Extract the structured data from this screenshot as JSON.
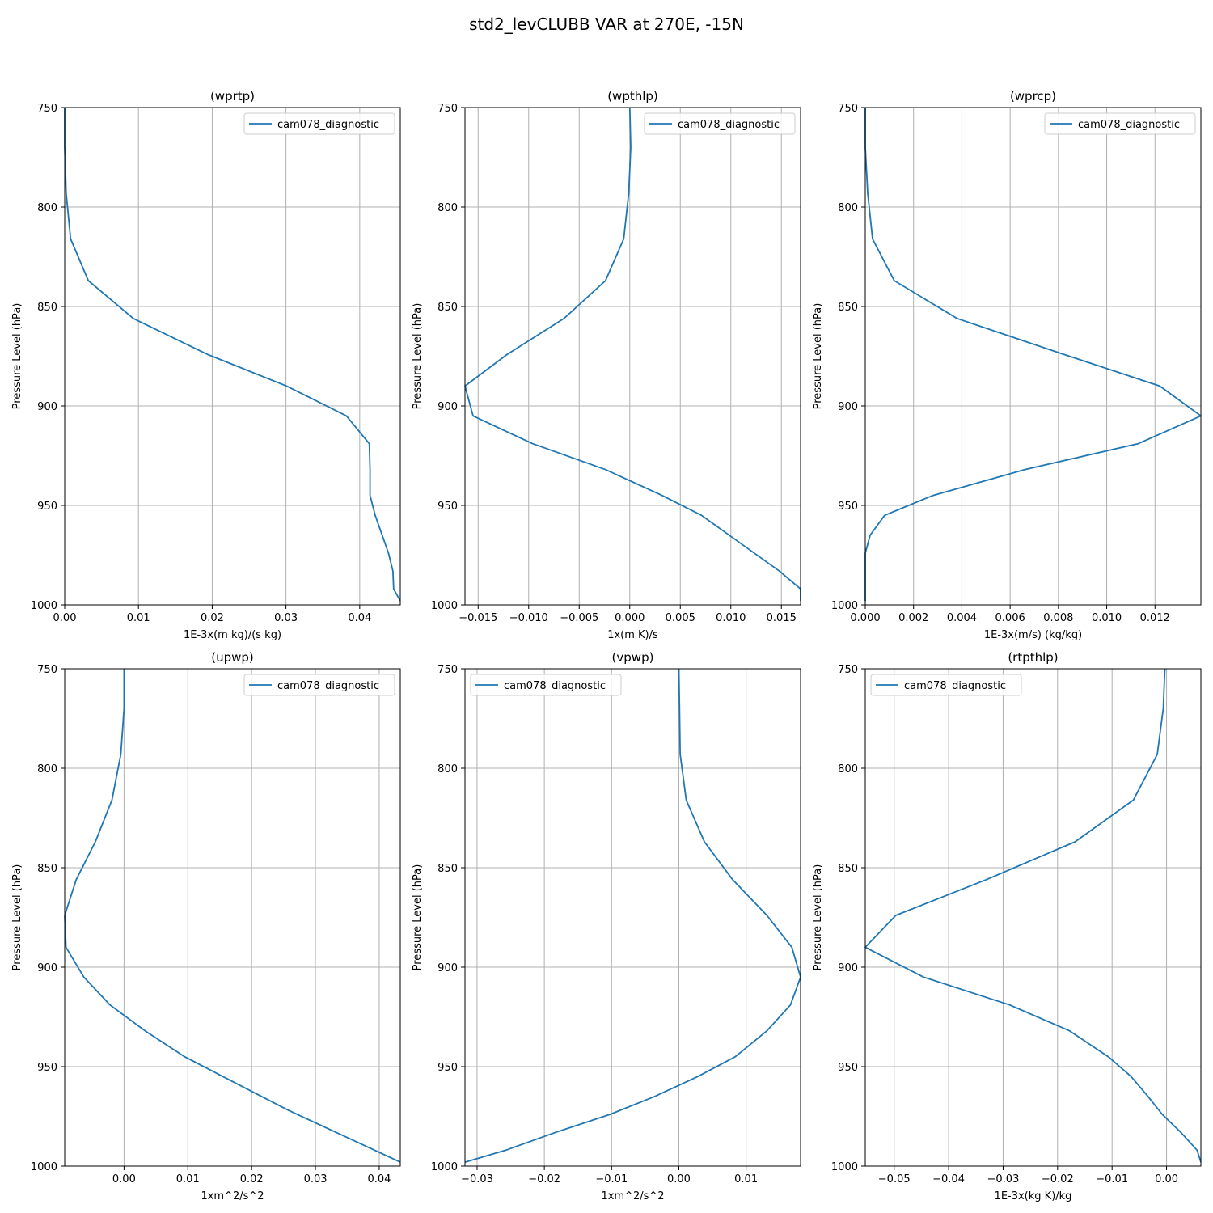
{
  "figure": {
    "title": "std2_levCLUBB VAR at 270E, -15N",
    "series_color": "#1f77b4"
  },
  "chart_data": [
    {
      "type": "line",
      "title": "(wprtp)",
      "xlabel": "1E-3x(m kg)/(s kg)",
      "ylabel": "Pressure Level (hPa)",
      "xlim": [
        0,
        0.0455
      ],
      "ylim": [
        1000,
        750
      ],
      "xticks": [
        0,
        0.01,
        0.02,
        0.03,
        0.04
      ],
      "xtick_labels": [
        "0.00",
        "0.01",
        "0.02",
        "0.03",
        "0.04"
      ],
      "yticks": [
        750,
        800,
        850,
        900,
        950,
        1000
      ],
      "ytick_labels": [
        "750",
        "800",
        "850",
        "900",
        "950",
        "1000"
      ],
      "legend": "top-right",
      "series": [
        {
          "name": "cam078_diagnostic",
          "x": [
            0.0,
            0.0,
            0.0002,
            0.0008,
            0.0032,
            0.0093,
            0.0193,
            0.0301,
            0.0382,
            0.0413,
            0.0414,
            0.0414,
            0.0421,
            0.0439,
            0.0445,
            0.0446,
            0.0455
          ],
          "y": [
            750,
            770,
            793,
            816,
            837,
            856,
            874,
            890,
            905,
            919,
            932,
            945,
            955,
            974,
            983,
            992,
            998
          ]
        }
      ]
    },
    {
      "type": "line",
      "title": "(wpthlp)",
      "xlabel": "1x(m K)/s",
      "ylabel": "Pressure Level (hPa)",
      "xlim": [
        -0.0163,
        0.0169
      ],
      "ylim": [
        1000,
        750
      ],
      "xticks": [
        -0.015,
        -0.01,
        -0.005,
        0,
        0.005,
        0.01,
        0.015
      ],
      "xtick_labels": [
        "−0.015",
        "−0.010",
        "−0.005",
        "0.000",
        "0.005",
        "0.010",
        "0.015"
      ],
      "yticks": [
        750,
        800,
        850,
        900,
        950,
        1000
      ],
      "ytick_labels": [
        "750",
        "800",
        "850",
        "900",
        "950",
        "1000"
      ],
      "legend": "top-right",
      "series": [
        {
          "name": "cam078_diagnostic",
          "x": [
            0.0,
            0.0001,
            -0.0001,
            -0.0006,
            -0.0024,
            -0.0065,
            -0.0121,
            -0.0163,
            -0.0155,
            -0.0096,
            -0.0024,
            0.0032,
            0.0071,
            0.0148,
            0.0169,
            0.0169
          ],
          "y": [
            750,
            770,
            793,
            816,
            837,
            856,
            874,
            890,
            905,
            919,
            932,
            945,
            955,
            983,
            992,
            998
          ]
        }
      ]
    },
    {
      "type": "line",
      "title": "(wprcp)",
      "xlabel": "1E-3x(m/s) (kg/kg)",
      "ylabel": "Pressure Level (hPa)",
      "xlim": [
        0,
        0.0139
      ],
      "ylim": [
        1000,
        750
      ],
      "xticks": [
        0,
        0.002,
        0.004,
        0.006,
        0.008,
        0.01,
        0.012
      ],
      "xtick_labels": [
        "0.000",
        "0.002",
        "0.004",
        "0.006",
        "0.008",
        "0.010",
        "0.012"
      ],
      "yticks": [
        750,
        800,
        850,
        900,
        950,
        1000
      ],
      "ytick_labels": [
        "750",
        "800",
        "850",
        "900",
        "950",
        "1000"
      ],
      "legend": "top-right",
      "series": [
        {
          "name": "cam078_diagnostic",
          "x": [
            0.0,
            0.0,
            0.0001,
            0.0003,
            0.0012,
            0.0038,
            0.0082,
            0.0122,
            0.0139,
            0.0113,
            0.0066,
            0.0028,
            0.0008,
            0.0002,
            0.0,
            0.0,
            0.0
          ],
          "y": [
            750,
            770,
            793,
            816,
            837,
            856,
            874,
            890,
            905,
            919,
            932,
            945,
            955,
            965,
            974,
            983,
            998
          ]
        }
      ]
    },
    {
      "type": "line",
      "title": "(upwp)",
      "xlabel": "1xm^2/s^2",
      "ylabel": "Pressure Level (hPa)",
      "xlim": [
        -0.0093,
        0.0433
      ],
      "ylim": [
        1000,
        750
      ],
      "xticks": [
        0,
        0.01,
        0.02,
        0.03,
        0.04
      ],
      "xtick_labels": [
        "0.00",
        "0.01",
        "0.02",
        "0.03",
        "0.04"
      ],
      "yticks": [
        750,
        800,
        850,
        900,
        950,
        1000
      ],
      "ytick_labels": [
        "750",
        "800",
        "850",
        "900",
        "950",
        "1000"
      ],
      "legend": "top-right",
      "series": [
        {
          "name": "cam078_diagnostic",
          "x": [
            0.0,
            0.0,
            -0.0005,
            -0.0019,
            -0.0045,
            -0.0075,
            -0.0093,
            -0.0091,
            -0.0063,
            -0.0022,
            0.0033,
            0.0095,
            0.0155,
            0.0258,
            0.0433
          ],
          "y": [
            750,
            770,
            793,
            816,
            837,
            856,
            874,
            890,
            905,
            919,
            932,
            945,
            955,
            972,
            998
          ]
        }
      ]
    },
    {
      "type": "line",
      "title": "(vpwp)",
      "xlabel": "1xm^2/s^2",
      "ylabel": "Pressure Level (hPa)",
      "xlim": [
        -0.0318,
        0.0181
      ],
      "ylim": [
        1000,
        750
      ],
      "xticks": [
        -0.03,
        -0.02,
        -0.01,
        0,
        0.01
      ],
      "xtick_labels": [
        "−0.03",
        "−0.02",
        "−0.01",
        "0.00",
        "0.01"
      ],
      "yticks": [
        750,
        800,
        850,
        900,
        950,
        1000
      ],
      "ytick_labels": [
        "750",
        "800",
        "850",
        "900",
        "950",
        "1000"
      ],
      "legend": "top-left",
      "series": [
        {
          "name": "cam078_diagnostic",
          "x": [
            0.0,
            0.0001,
            0.0002,
            0.0011,
            0.0038,
            0.008,
            0.0131,
            0.0168,
            0.0181,
            0.0166,
            0.0131,
            0.0084,
            0.0028,
            -0.0036,
            -0.0102,
            -0.0183,
            -0.0257,
            -0.0318
          ],
          "y": [
            750,
            770,
            793,
            816,
            837,
            856,
            874,
            890,
            905,
            919,
            932,
            945,
            955,
            965,
            974,
            983,
            992,
            998
          ]
        }
      ]
    },
    {
      "type": "line",
      "title": "(rtpthlp)",
      "xlabel": "1E-3x(kg K)/kg",
      "ylabel": "Pressure Level (hPa)",
      "xlim": [
        -0.0553,
        0.0063
      ],
      "ylim": [
        1000,
        750
      ],
      "xticks": [
        -0.05,
        -0.04,
        -0.03,
        -0.02,
        -0.01,
        0
      ],
      "xtick_labels": [
        "−0.05",
        "−0.04",
        "−0.03",
        "−0.02",
        "−0.01",
        "0.00"
      ],
      "yticks": [
        750,
        800,
        850,
        900,
        950,
        1000
      ],
      "ytick_labels": [
        "750",
        "800",
        "850",
        "900",
        "950",
        "1000"
      ],
      "legend": "top-left",
      "series": [
        {
          "name": "cam078_diagnostic",
          "x": [
            -0.0003,
            -0.0006,
            -0.0017,
            -0.0061,
            -0.0168,
            -0.0331,
            -0.0497,
            -0.0553,
            -0.0446,
            -0.0288,
            -0.0178,
            -0.0107,
            -0.0065,
            -0.0034,
            -0.0008,
            0.0026,
            0.0056,
            0.0063
          ],
          "y": [
            750,
            770,
            793,
            816,
            837,
            856,
            874,
            890,
            905,
            919,
            932,
            945,
            955,
            965,
            974,
            983,
            992,
            998
          ]
        }
      ]
    }
  ]
}
